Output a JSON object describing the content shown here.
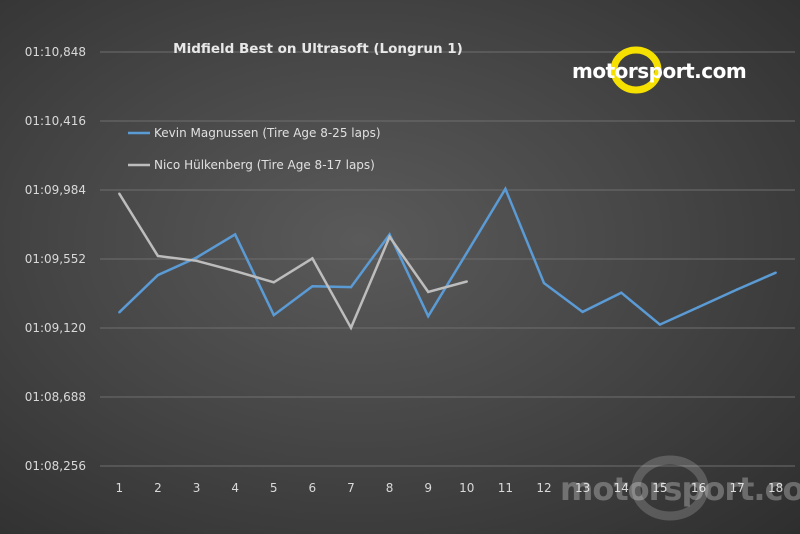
{
  "logo": {
    "text": "motorsport.com",
    "accent": "#f5e000"
  },
  "watermark": {
    "text": "motorsport.com"
  },
  "chart_data": {
    "type": "line",
    "title": "Midfield Best on Ultrasoft (Longrun 1)",
    "xlabel": "",
    "ylabel": "",
    "categories": [
      "1",
      "2",
      "3",
      "4",
      "5",
      "6",
      "7",
      "8",
      "9",
      "10",
      "11",
      "12",
      "13",
      "14",
      "15",
      "16",
      "17",
      "18"
    ],
    "y_ticks": [
      "01:08,256",
      "01:08,688",
      "01:09,120",
      "01:09,552",
      "01:09,984",
      "01:10,416",
      "01:10,848"
    ],
    "ylim": [
      68.256,
      70.848
    ],
    "grid": true,
    "legend_position": "top-left",
    "series": [
      {
        "name": "Kevin Magnussen (Tire Age 8-25 laps)",
        "color": "#5b9bd5",
        "values": [
          69.218,
          69.451,
          69.561,
          69.706,
          69.201,
          69.381,
          69.376,
          69.706,
          69.194,
          69.591,
          69.991,
          69.401,
          69.221,
          69.341,
          69.141,
          69.251,
          69.361,
          69.466
        ]
      },
      {
        "name": "Nico Hülkenberg (Tire Age 8-17 laps)",
        "color": "#bdbdbd",
        "values": [
          69.961,
          69.571,
          69.541,
          69.476,
          69.406,
          69.556,
          69.121,
          69.691,
          69.346,
          69.411,
          null,
          null,
          null,
          null,
          null,
          null,
          null,
          null
        ]
      }
    ]
  }
}
